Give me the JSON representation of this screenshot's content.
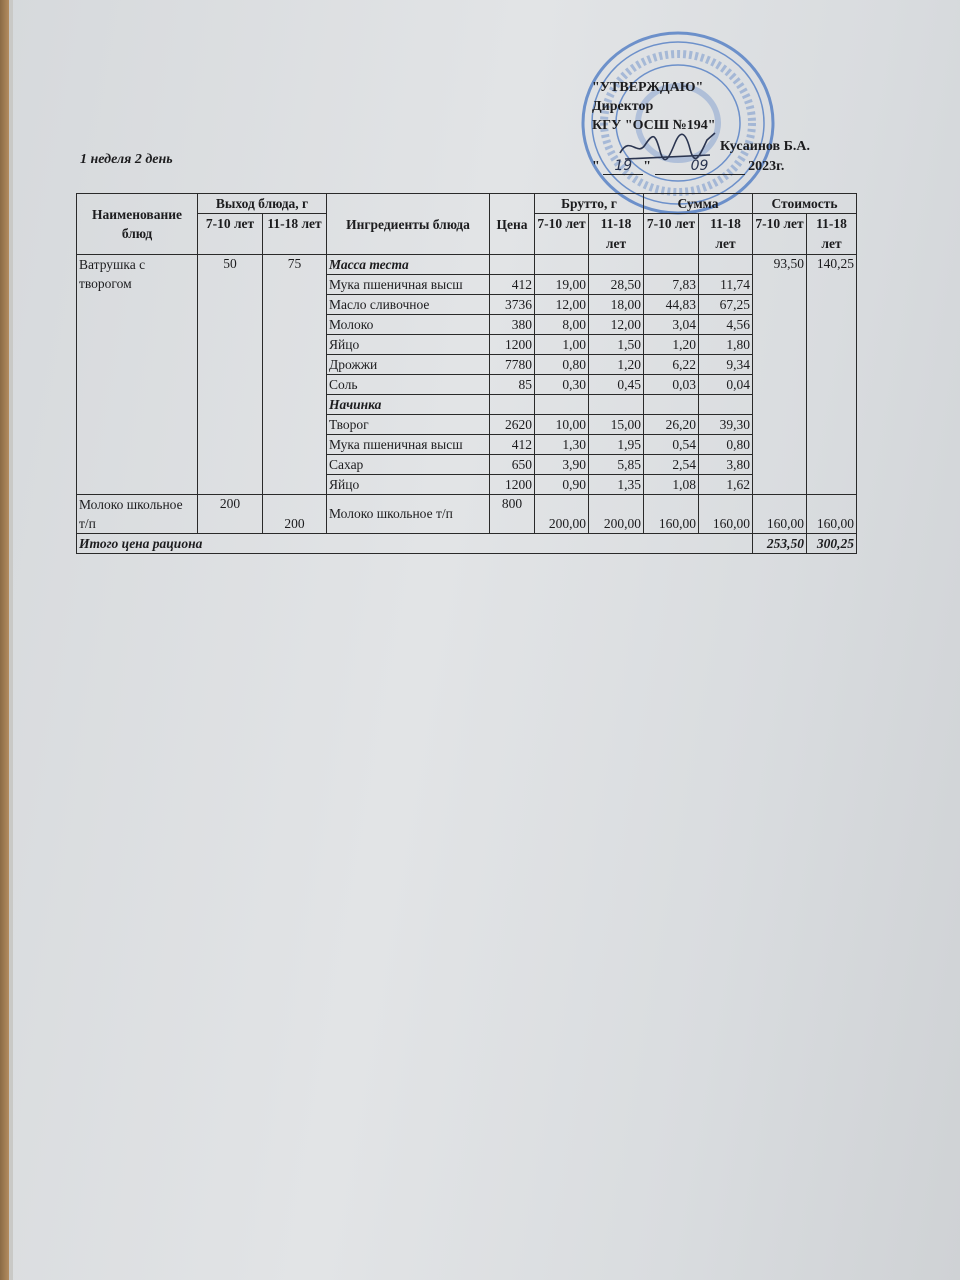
{
  "document": {
    "week_day": "1 неделя  2 день",
    "approval": {
      "title": "\"УТВЕРЖДАЮ\"",
      "position": "Директор",
      "organization": "КГУ \"ОСШ №194\"",
      "name": "Кусаинов Б.А.",
      "date_day": "19",
      "date_month": "09",
      "date_year": "2023г.",
      "quote_open": "\"",
      "quote_close": "\""
    },
    "stamp_color": "#3d6fc0",
    "headers": {
      "dish_name": "Наименование блюд",
      "yield": "Выход блюда, г",
      "ingredients": "Ингредиенты блюда",
      "price": "Цена",
      "brutto": "Брутто, г",
      "sum": "Сумма",
      "cost": "Стоимость",
      "age_7_10": "7-10 лет",
      "age_11_18": "11-18 лет"
    },
    "dishes": [
      {
        "name": "Ватрушка с творогом",
        "yield_7_10": "50",
        "yield_11_18": "75",
        "cost_7_10": "93,50",
        "cost_11_18": "140,25",
        "ingredients": [
          {
            "name": "Масса теста",
            "section": true
          },
          {
            "name": "Мука пшеничная высш",
            "price": "412",
            "brutto_7_10": "19,00",
            "brutto_11_18": "28,50",
            "sum_7_10": "7,83",
            "sum_11_18": "11,74"
          },
          {
            "name": "Масло сливочное",
            "price": "3736",
            "brutto_7_10": "12,00",
            "brutto_11_18": "18,00",
            "sum_7_10": "44,83",
            "sum_11_18": "67,25"
          },
          {
            "name": "Молоко",
            "price": "380",
            "brutto_7_10": "8,00",
            "brutto_11_18": "12,00",
            "sum_7_10": "3,04",
            "sum_11_18": "4,56"
          },
          {
            "name": "Яйцо",
            "price": "1200",
            "brutto_7_10": "1,00",
            "brutto_11_18": "1,50",
            "sum_7_10": "1,20",
            "sum_11_18": "1,80"
          },
          {
            "name": "Дрожжи",
            "price": "7780",
            "brutto_7_10": "0,80",
            "brutto_11_18": "1,20",
            "sum_7_10": "6,22",
            "sum_11_18": "9,34"
          },
          {
            "name": "Соль",
            "price": "85",
            "brutto_7_10": "0,30",
            "brutto_11_18": "0,45",
            "sum_7_10": "0,03",
            "sum_11_18": "0,04"
          },
          {
            "name": "Начинка",
            "section": true
          },
          {
            "name": "Творог",
            "price": "2620",
            "brutto_7_10": "10,00",
            "brutto_11_18": "15,00",
            "sum_7_10": "26,20",
            "sum_11_18": "39,30"
          },
          {
            "name": "Мука пшеничная высш",
            "price": "412",
            "brutto_7_10": "1,30",
            "brutto_11_18": "1,95",
            "sum_7_10": "0,54",
            "sum_11_18": "0,80"
          },
          {
            "name": "Сахар",
            "price": "650",
            "brutto_7_10": "3,90",
            "brutto_11_18": "5,85",
            "sum_7_10": "2,54",
            "sum_11_18": "3,80"
          },
          {
            "name": "Яйцо",
            "price": "1200",
            "brutto_7_10": "0,90",
            "brutto_11_18": "1,35",
            "sum_7_10": "1,08",
            "sum_11_18": "1,62"
          }
        ]
      },
      {
        "name": "Молоко школьное т/п",
        "yield_7_10": "200",
        "yield_11_18": "200",
        "cost_7_10": "160,00",
        "cost_11_18": "160,00",
        "ingredients": [
          {
            "name": "Молоко школьное т/п",
            "price": "800",
            "brutto_7_10": "200,00",
            "brutto_11_18": "200,00",
            "sum_7_10": "160,00",
            "sum_11_18": "160,00"
          }
        ]
      }
    ],
    "total": {
      "label": "Итого цена рациона",
      "cost_7_10": "253,50",
      "cost_11_18": "300,25"
    }
  }
}
